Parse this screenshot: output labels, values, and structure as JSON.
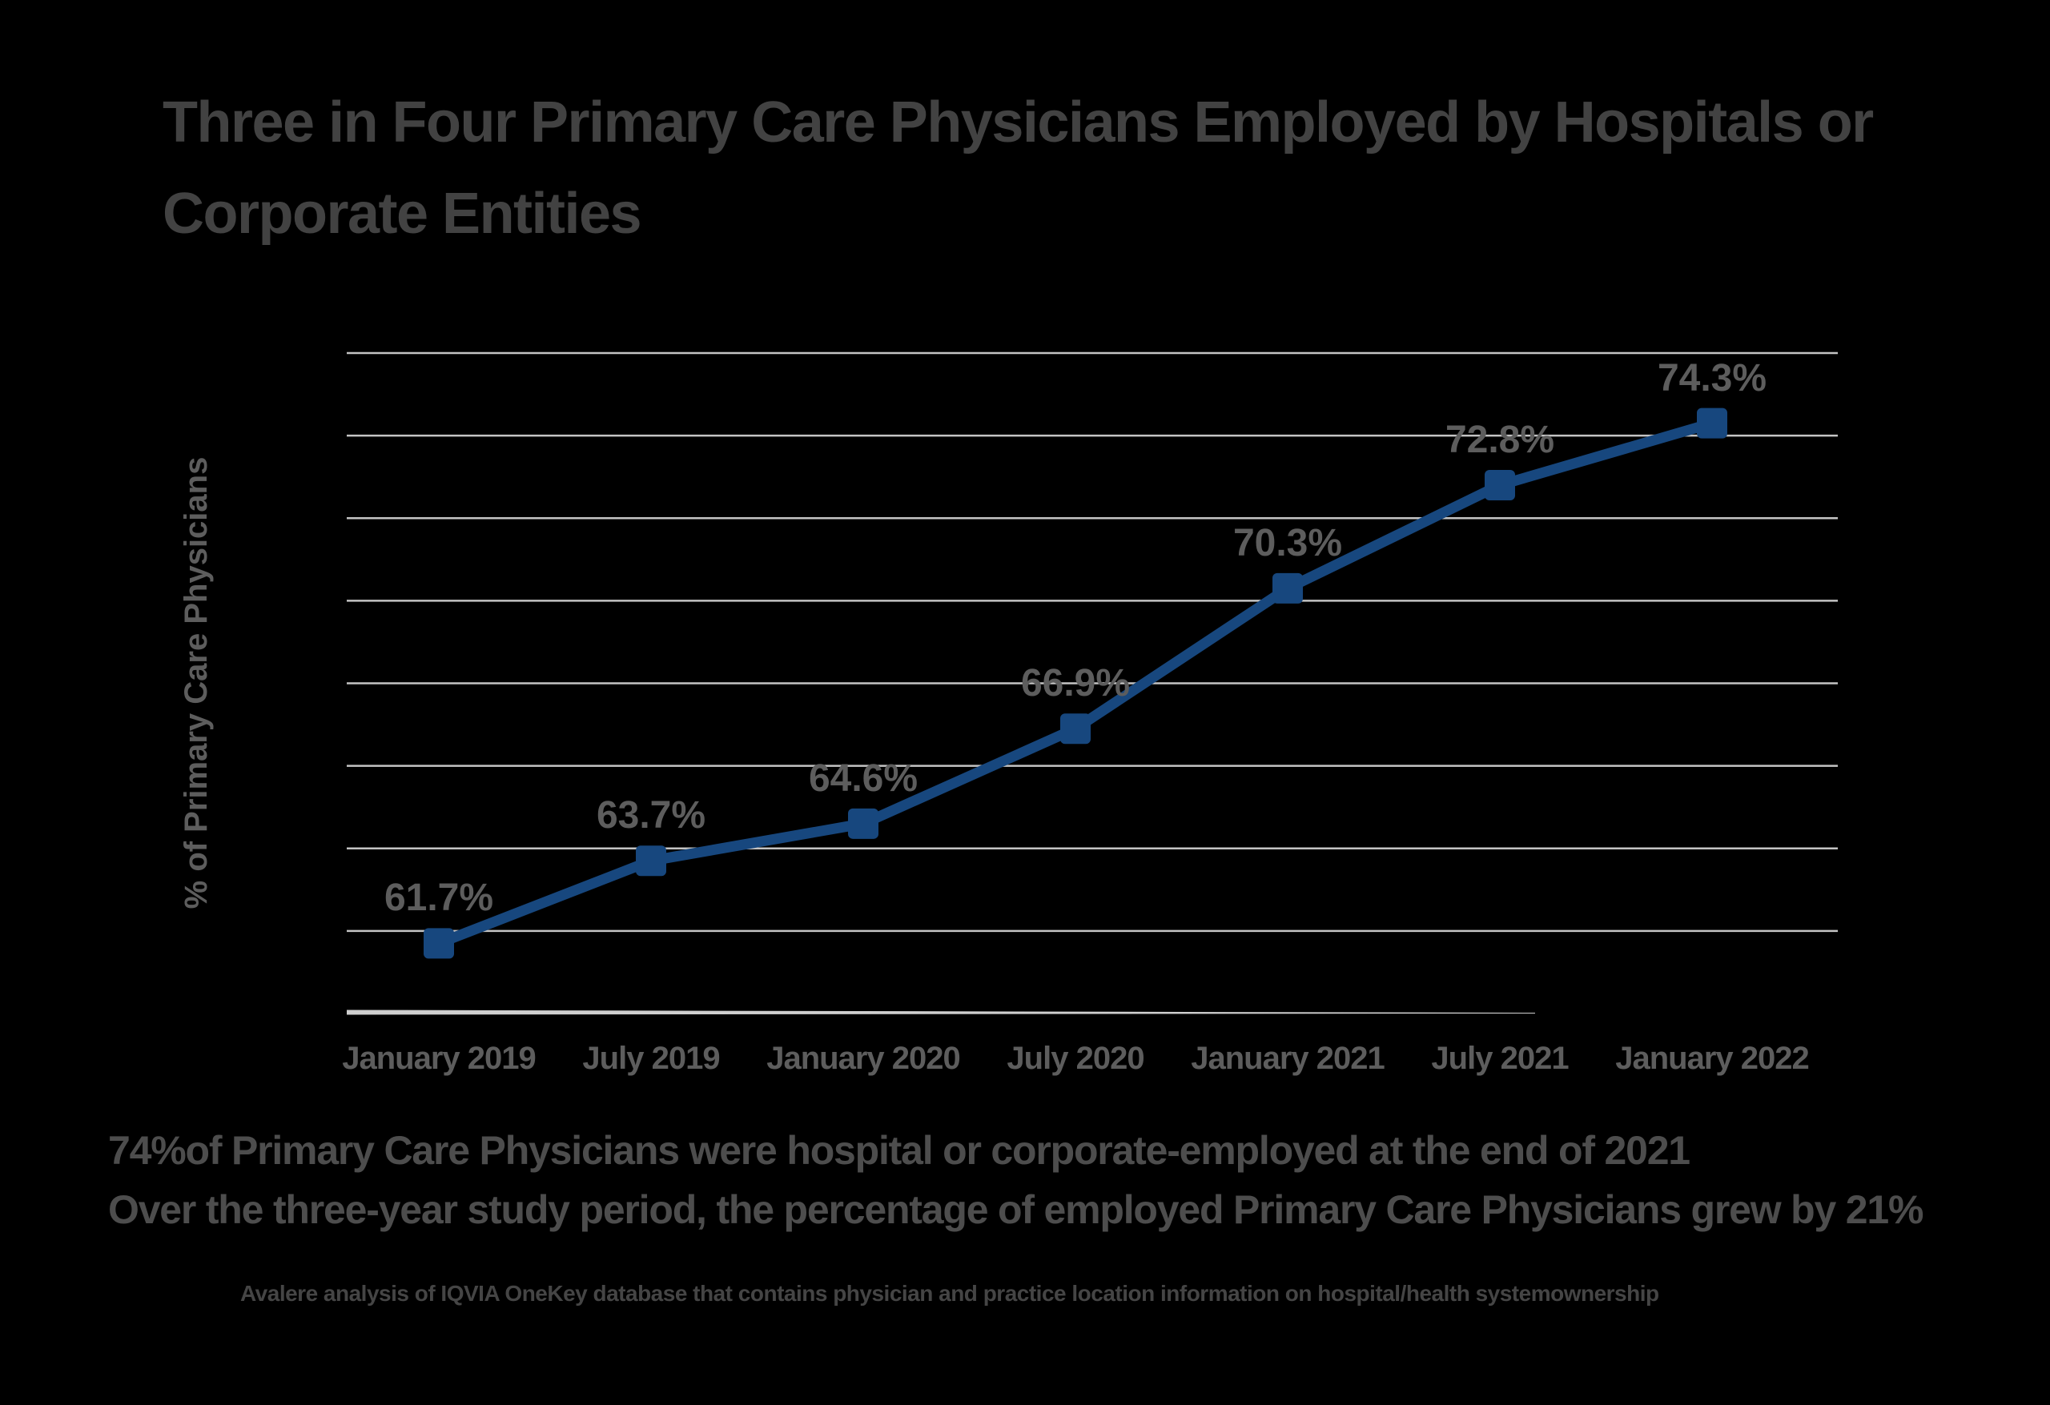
{
  "title": {
    "line1": "Three in Four Primary Care Physicians Employed by Hospitals or",
    "line2": "Corporate Entities"
  },
  "chart_data": {
    "type": "line",
    "title": "Three in Four Primary Care Physicians Employed by Hospitals or Corporate Entities",
    "categories": [
      "January 2019",
      "July 2019",
      "January 2020",
      "July 2020",
      "January 2021",
      "July 2021",
      "January 2022"
    ],
    "series": [
      {
        "name": "% of Primary Care Physicians",
        "values": [
          61.7,
          63.7,
          64.6,
          66.9,
          70.3,
          72.8,
          74.3
        ]
      }
    ],
    "data_labels": [
      "61.7%",
      "63.7%",
      "64.6%",
      "66.9%",
      "70.3%",
      "72.8%",
      "74.3%"
    ],
    "xlabel": "",
    "ylabel": "% of Primary Care Physicians",
    "ylim": [
      60,
      76
    ],
    "gridline_step": 2,
    "grid": "horizontal-only",
    "y_tick_labels_visible": false,
    "legend": "none",
    "marker": "square"
  },
  "annotations": {
    "takeaway1": "74%of Primary Care Physicians were hospital or corporate-employed at the end of 2021",
    "takeaway2": "Over the three-year study period, the percentage of employed Primary Care Physicians grew by 21%",
    "source_note": "Avalere analysis of IQVIA OneKey database that contains physician and practice location information on hospital/health systemownership"
  },
  "colors": {
    "background": "#000000",
    "title_text": "#424242",
    "axis_label_text": "#5d5d5d",
    "takeaway_text": "#4d4d4d",
    "footnote_text": "#454545",
    "line": "#17477e",
    "marker": "#17477e",
    "gridline": "#c4c4c4",
    "axis_line": "#cfcfcf"
  }
}
